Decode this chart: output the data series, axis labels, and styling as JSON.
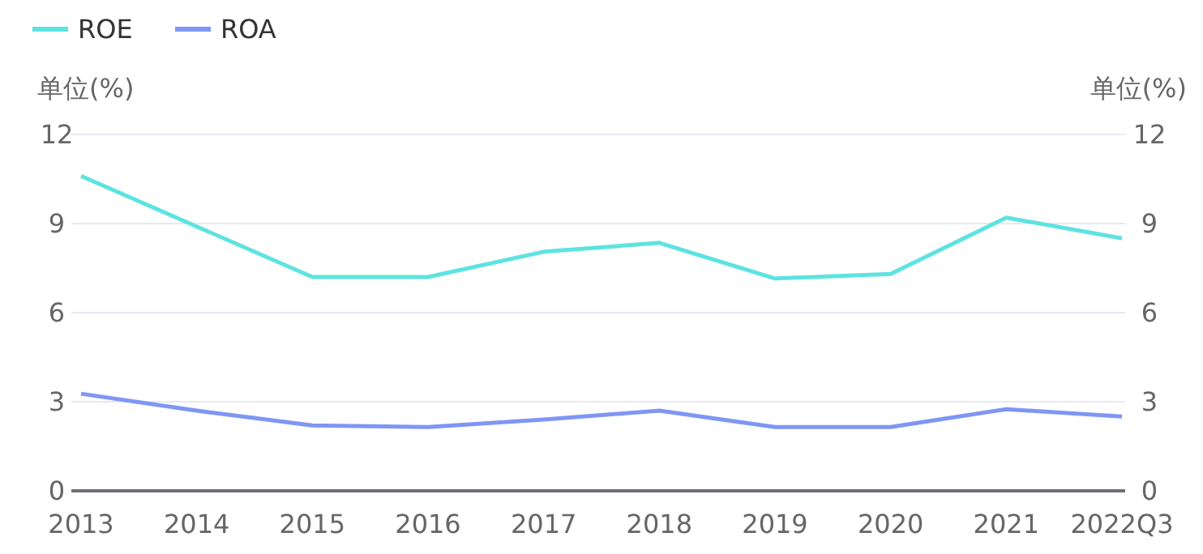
{
  "chart_data": {
    "type": "line",
    "categories": [
      "2013",
      "2014",
      "2015",
      "2016",
      "2017",
      "2018",
      "2019",
      "2020",
      "2021",
      "2022Q3"
    ],
    "series": [
      {
        "name": "ROE",
        "color": "#5de3e1",
        "values": [
          10.6,
          8.9,
          7.2,
          7.2,
          8.05,
          8.35,
          7.15,
          7.3,
          9.2,
          8.5
        ]
      },
      {
        "name": "ROA",
        "color": "#8096f4",
        "values": [
          3.27,
          2.7,
          2.2,
          2.15,
          2.4,
          2.7,
          2.15,
          2.15,
          2.75,
          2.5
        ]
      }
    ],
    "ylabel": "单位(%)",
    "y2label": "单位(%)",
    "ylim": [
      0,
      12
    ],
    "yticks": [
      0,
      3,
      6,
      9,
      12
    ],
    "y2lim": [
      0,
      12
    ],
    "y2ticks": [
      0,
      3,
      6,
      9,
      12
    ],
    "grid": "y",
    "legend": "top left",
    "marker": "none",
    "line_style": "solid"
  }
}
